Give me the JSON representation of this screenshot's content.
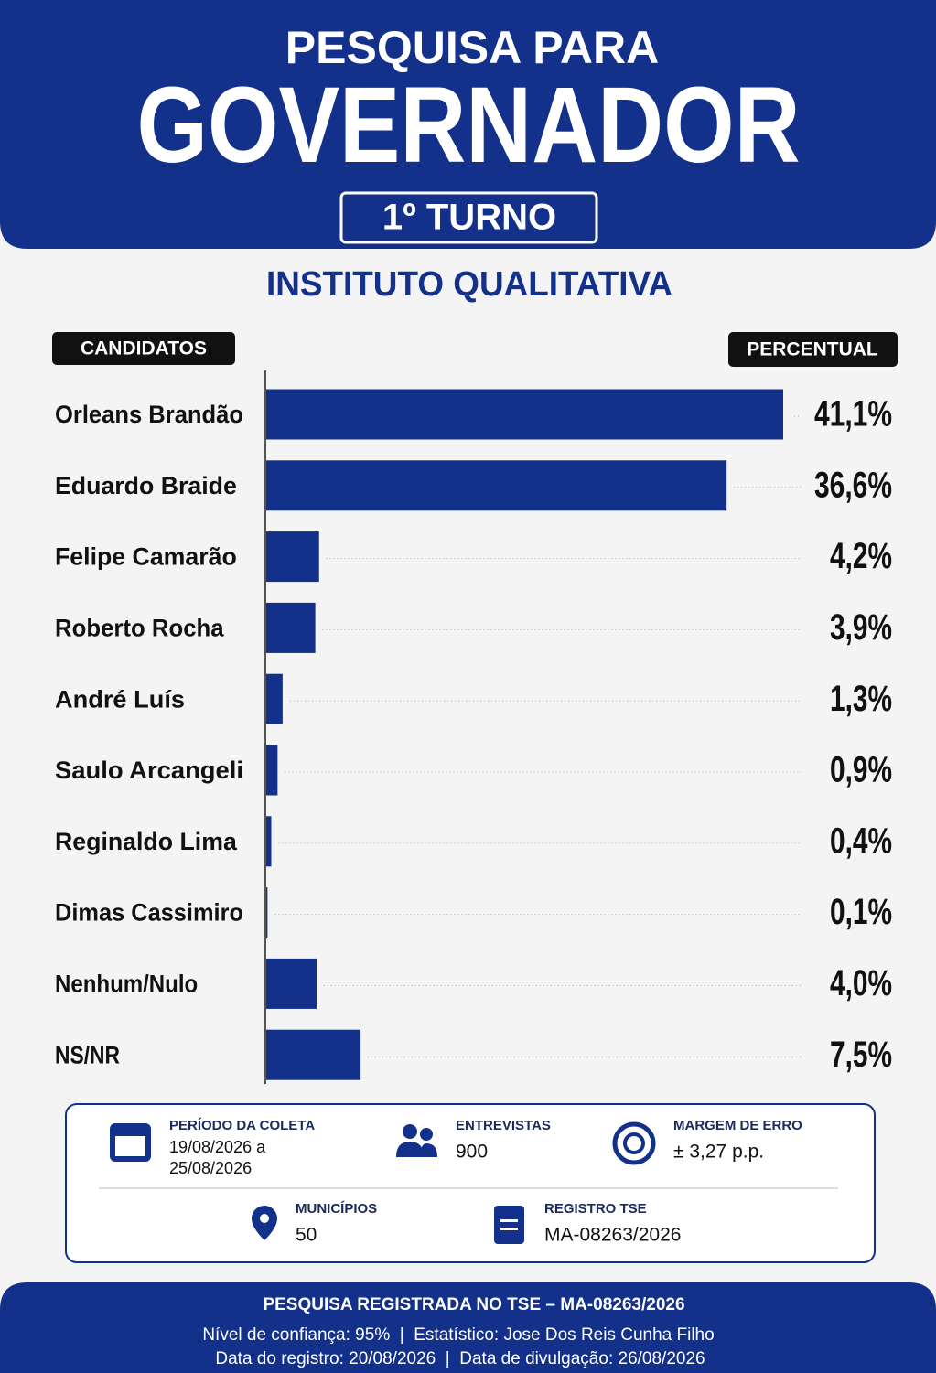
{
  "header": {
    "kicker": "PESQUISA PARA",
    "title": "GOVERNADOR",
    "round": "1º TURNO"
  },
  "institute": "INSTITUTO QUALITATIVA",
  "chart_data": {
    "type": "bar",
    "orientation": "horizontal",
    "category_header": "CANDIDATOS",
    "value_header": "PERCENTUAL",
    "categories": [
      "Orleans Brandão",
      "Eduardo Braide",
      "Felipe Camarão",
      "Roberto Rocha",
      "André Luís",
      "Saulo Arcangeli",
      "Reginaldo Lima",
      "Dimas Cassimiro",
      "Nenhum/Nulo",
      "NS/NR"
    ],
    "values": [
      41.1,
      36.6,
      4.2,
      3.9,
      1.3,
      0.9,
      0.4,
      0.1,
      4.0,
      7.5
    ],
    "value_labels": [
      "41,1%",
      "36,6%",
      "4,2%",
      "3,9%",
      "1,3%",
      "0,9%",
      "0,4%",
      "0,1%",
      "4,0%",
      "7,5%"
    ],
    "color": "#13308a"
  },
  "info": {
    "items": [
      {
        "label": "PERÍODO DA COLETA",
        "lines": [
          "19/08/2026 a",
          "25/08/2026"
        ]
      },
      {
        "label": "ENTREVISTAS",
        "lines": [
          "900"
        ]
      },
      {
        "label": "MARGEM DE ERRO",
        "lines": [
          "± 3,27 p.p."
        ]
      },
      {
        "label": "MUNICÍPIOS",
        "lines": [
          "50"
        ]
      },
      {
        "label": "REGISTRO TSE",
        "lines": [
          "MA-08263/2026"
        ]
      }
    ]
  },
  "footer": {
    "title": "PESQUISA REGISTRADA NO TSE – MA-08263/2026",
    "lines": [
      "Nível de confiança: 95%  |  Estatístico: Jose Dos Reis Cunha Filho",
      "Data do registro: 20/08/2026  |  Data de divulgação: 26/08/2026"
    ]
  }
}
